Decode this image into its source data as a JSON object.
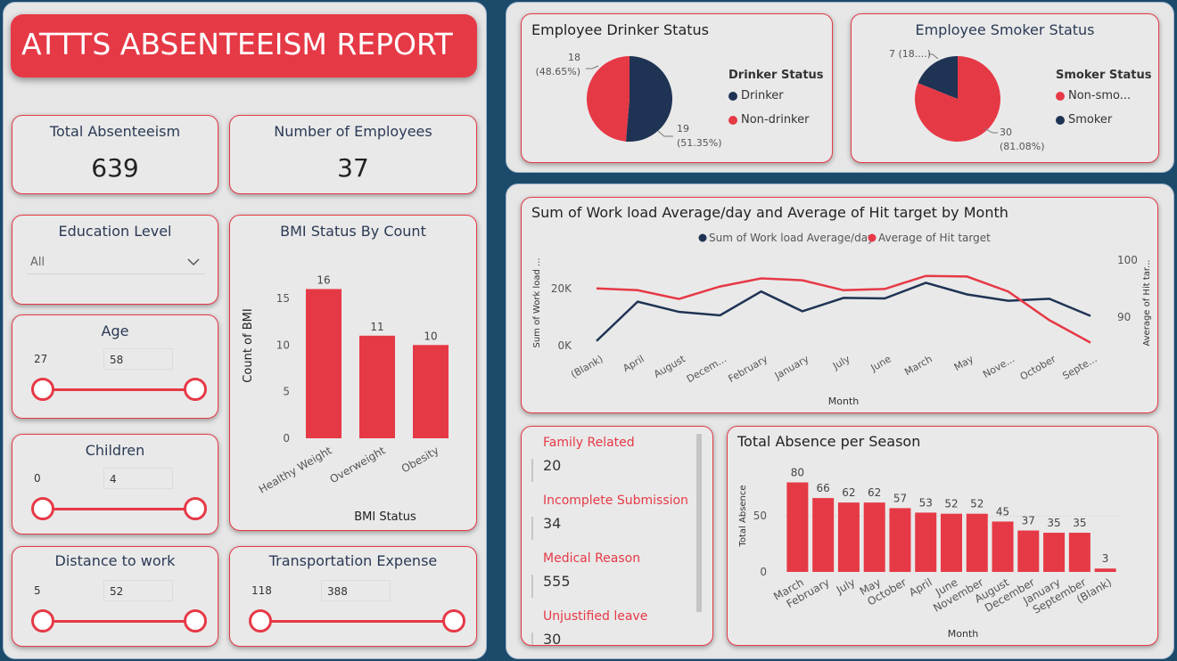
{
  "report": {
    "title": "ATTTS ABSENTEEISM REPORT"
  },
  "kpis": {
    "total_absenteeism": {
      "label": "Total Absenteeism",
      "value": "639"
    },
    "number_of_employees": {
      "label": "Number of Employees",
      "value": "37"
    }
  },
  "filters": {
    "education": {
      "label": "Education Level",
      "selected": "All"
    },
    "age": {
      "label": "Age",
      "min": "27",
      "max": "58"
    },
    "children": {
      "label": "Children",
      "min": "0",
      "max": "4"
    },
    "distance": {
      "label": "Distance to work",
      "min": "5",
      "max": "52"
    },
    "transport": {
      "label": "Transportation Expense",
      "min": "118",
      "max": "388"
    }
  },
  "colors": {
    "accent": "#e63946",
    "navy": "#1f3354",
    "background": "#1b4a6b",
    "card": "#e9e9e9"
  },
  "drinker": {
    "title": "Employee Drinker Status",
    "legend_title": "Drinker Status",
    "labels": [
      "Drinker",
      "Non-drinker"
    ],
    "slice_labels": [
      "19",
      "(51.35%)",
      "18",
      "(48.65%)"
    ]
  },
  "smoker": {
    "title": "Employee Smoker Status",
    "legend_title": "Smoker Status",
    "labels": [
      "Non-smo...",
      "Smoker"
    ],
    "slice_labels": [
      "30",
      "(81.08%)",
      "7 (18....)"
    ]
  },
  "reasons": [
    {
      "label": "Family Related",
      "value": "20"
    },
    {
      "label": "Incomplete Submission",
      "value": "34"
    },
    {
      "label": "Medical Reason",
      "value": "555"
    },
    {
      "label": "Unjustified leave",
      "value": "30"
    }
  ],
  "chart_data": [
    {
      "type": "bar",
      "title": "BMI Status By Count",
      "xlabel": "BMI Status",
      "ylabel": "Count of BMI",
      "categories": [
        "Healthy Weight",
        "Overweight",
        "Obesity"
      ],
      "values": [
        16,
        11,
        10
      ],
      "ylim": [
        0,
        17
      ],
      "yticks": [
        0,
        5,
        10,
        15
      ]
    },
    {
      "type": "pie",
      "title": "Employee Drinker Status",
      "categories": [
        "Drinker",
        "Non-drinker"
      ],
      "values": [
        19,
        18
      ]
    },
    {
      "type": "pie",
      "title": "Employee Smoker Status",
      "categories": [
        "Non-smo...",
        "Smoker"
      ],
      "values": [
        30,
        7
      ]
    },
    {
      "type": "line",
      "title": "Sum of Work load Average/day and Average of Hit target by Month",
      "xlabel": "Month",
      "ylabel": "Sum of Work load ...",
      "ylabel_right": "Average of Hit tar...",
      "categories": [
        "(Blank)",
        "April",
        "August",
        "Decem...",
        "February",
        "January",
        "July",
        "June",
        "March",
        "May",
        "Nove...",
        "October",
        "Septe..."
      ],
      "series": [
        {
          "name": "Sum of Work load Average/day",
          "axis": "left",
          "values": [
            1000,
            14500,
            11000,
            9800,
            18000,
            11200,
            15800,
            15600,
            21000,
            17000,
            14800,
            15500,
            9600
          ]
        },
        {
          "name": "Average of Hit target",
          "axis": "right",
          "values": [
            94.9,
            94.6,
            93.2,
            95.2,
            96.5,
            96.2,
            94.6,
            94.8,
            96.9,
            96.8,
            94.4,
            89.8,
            86.2
          ]
        }
      ],
      "ylim_left": [
        0,
        30000
      ],
      "ylim_right": [
        86,
        100
      ],
      "yticks_left": [
        "0K",
        "20K"
      ],
      "yticks_right": [
        "90",
        "100"
      ]
    },
    {
      "type": "bar",
      "title": "Total Absence per Season",
      "xlabel": "Month",
      "ylabel": "Total Absence",
      "categories": [
        "March",
        "February",
        "July",
        "May",
        "October",
        "April",
        "June",
        "November",
        "August",
        "December",
        "January",
        "September",
        "(Blank)"
      ],
      "values": [
        80,
        66,
        62,
        62,
        57,
        53,
        52,
        52,
        45,
        37,
        35,
        35,
        3
      ],
      "ylim": [
        0,
        82
      ],
      "yticks": [
        0,
        50
      ]
    }
  ]
}
